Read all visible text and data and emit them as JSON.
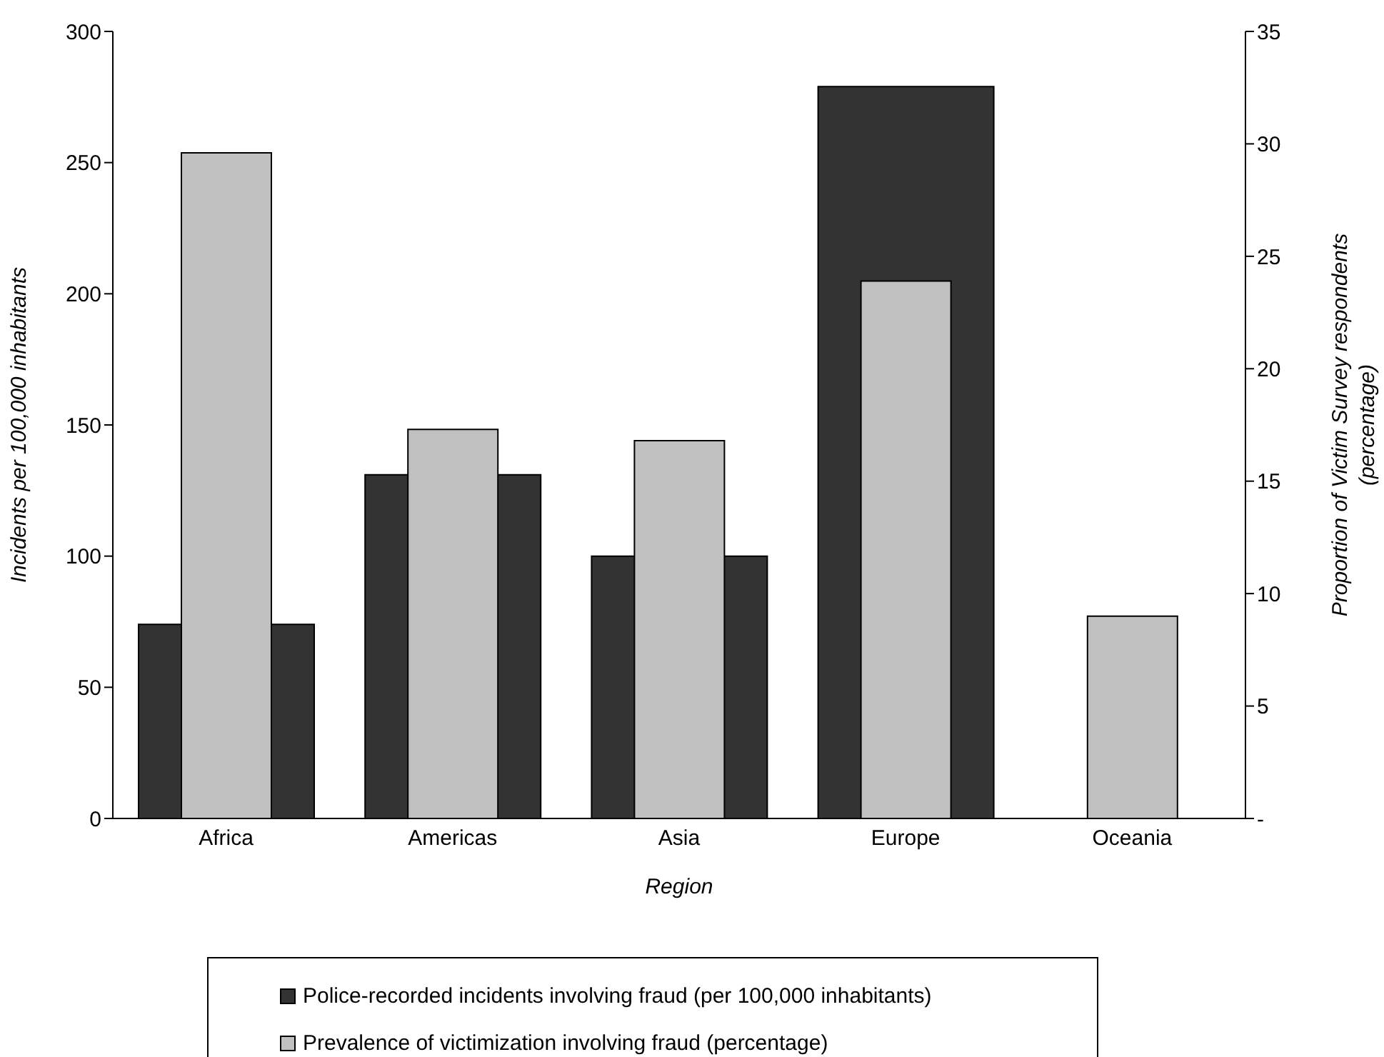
{
  "chart_data": {
    "type": "bar",
    "categories": [
      "Africa",
      "Americas",
      "Asia",
      "Europe",
      "Oceania"
    ],
    "xlabel": "Region",
    "ylabel": "Incidents per 100,000 inhabitants",
    "y2label": "Proportion of Victim Survey respondents (percentage)",
    "series": [
      {
        "name": "Police-recorded incidents involving fraud (per 100,000 inhabitants)",
        "color": "#333333",
        "values": [
          74,
          131,
          100,
          279,
          null
        ]
      },
      {
        "name": "Prevalence of victimization involving fraud (percentage)",
        "color": "#c0c0c0",
        "axis": "y2",
        "values": [
          29.6,
          17.3,
          16.8,
          23.9,
          9.0
        ]
      }
    ],
    "ylim": [
      0,
      300
    ],
    "yticks": [
      0,
      50,
      100,
      150,
      200,
      250,
      300
    ],
    "y2lim": [
      0,
      35
    ],
    "y2ticks": [
      {
        "value": 0,
        "label": "-"
      },
      5,
      10,
      15,
      20,
      25,
      30,
      35
    ],
    "legend": "bottom"
  }
}
